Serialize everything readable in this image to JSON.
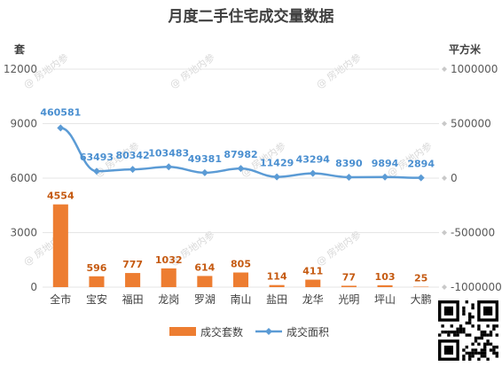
{
  "chart_data": {
    "type": "bar+line",
    "title": "月度二手住宅成交量数据",
    "left_axis_unit": "套",
    "right_axis_unit": "平方米",
    "categories": [
      "全市",
      "宝安",
      "福田",
      "龙岗",
      "罗湖",
      "南山",
      "盐田",
      "龙华",
      "光明",
      "坪山",
      "大鹏"
    ],
    "series": [
      {
        "name": "成交套数",
        "type": "bar",
        "axis": "left",
        "color": "#ed7d31",
        "values": [
          4554,
          596,
          777,
          1032,
          614,
          805,
          114,
          411,
          77,
          103,
          25
        ]
      },
      {
        "name": "成交面积",
        "type": "line",
        "axis": "right",
        "color": "#5b9bd5",
        "values": [
          460581,
          63493,
          80342,
          103483,
          49381,
          87982,
          11429,
          43294,
          8390,
          9894,
          2894
        ]
      }
    ],
    "left_ylim": [
      0,
      12000
    ],
    "left_yticks": [
      "0",
      "3000",
      "6000",
      "9000",
      "12000"
    ],
    "right_ylim": [
      -1000000,
      1000000
    ],
    "right_yticks": [
      "-1000000",
      "-500000",
      "0",
      "500000",
      "1000000"
    ],
    "grid": true,
    "legend_position": "bottom"
  },
  "watermark": {
    "text": "房地内参"
  }
}
